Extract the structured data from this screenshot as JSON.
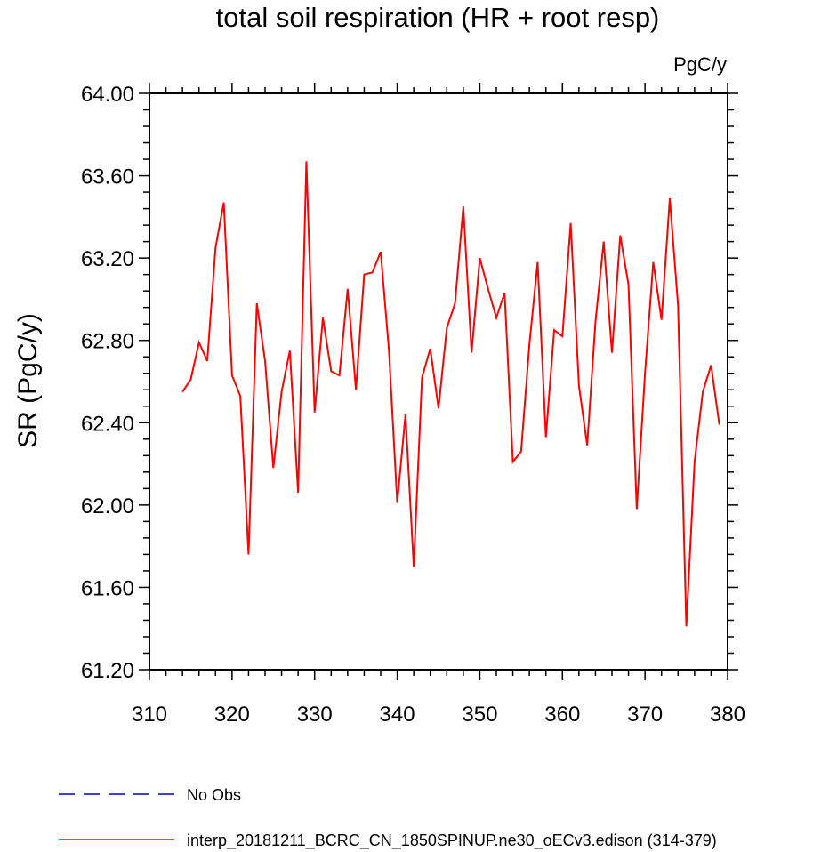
{
  "chart_data": {
    "type": "line",
    "title": "total soil respiration (HR + root resp)",
    "units_label": "PgC/y",
    "xlabel": "",
    "ylabel": "SR  (PgC/y)",
    "xlim": [
      310,
      380
    ],
    "ylim": [
      61.2,
      64.0
    ],
    "x_ticks": [
      310,
      320,
      330,
      340,
      350,
      360,
      370,
      380
    ],
    "x_tick_labels": [
      "310",
      "320",
      "330",
      "340",
      "350",
      "360",
      "370",
      "380"
    ],
    "x_minor_step": 2,
    "y_ticks": [
      61.2,
      61.6,
      62.0,
      62.4,
      62.8,
      63.2,
      63.6,
      64.0
    ],
    "y_tick_labels": [
      "61.20",
      "61.60",
      "62.00",
      "62.40",
      "62.80",
      "63.20",
      "63.60",
      "64.00"
    ],
    "y_minor_step": 0.08,
    "grid": false,
    "legend_position": "bottom",
    "series": [
      {
        "name": "No Obs",
        "color": "#0000cc",
        "style": "dashed",
        "x": [],
        "values": []
      },
      {
        "name": "interp_20181211_BCRC_CN_1850SPINUP.ne30_oECv3.edison (314-379)",
        "color": "#ff0000",
        "style": "solid",
        "x": [
          314,
          315,
          316,
          317,
          318,
          319,
          320,
          321,
          322,
          323,
          324,
          325,
          326,
          327,
          328,
          329,
          330,
          331,
          332,
          333,
          334,
          335,
          336,
          337,
          338,
          339,
          340,
          341,
          342,
          343,
          344,
          345,
          346,
          347,
          348,
          349,
          350,
          351,
          352,
          353,
          354,
          355,
          356,
          357,
          358,
          359,
          360,
          361,
          362,
          363,
          364,
          365,
          366,
          367,
          368,
          369,
          370,
          371,
          372,
          373,
          374,
          375,
          376,
          377,
          378,
          379
        ],
        "values": [
          62.55,
          62.61,
          62.79,
          62.7,
          63.25,
          63.47,
          62.63,
          62.53,
          61.76,
          62.98,
          62.7,
          62.18,
          62.55,
          62.75,
          62.06,
          63.67,
          62.45,
          62.91,
          62.65,
          62.63,
          63.05,
          62.56,
          63.12,
          63.13,
          63.23,
          62.75,
          62.01,
          62.44,
          61.7,
          62.62,
          62.76,
          62.47,
          62.86,
          62.98,
          63.45,
          62.74,
          63.2,
          63.05,
          62.91,
          63.03,
          62.21,
          62.26,
          62.78,
          63.18,
          62.33,
          62.85,
          62.82,
          63.37,
          62.58,
          62.29,
          62.89,
          63.28,
          62.74,
          63.31,
          63.07,
          61.98,
          62.64,
          63.18,
          62.9,
          63.49,
          62.97,
          61.41,
          62.21,
          62.55,
          62.68,
          62.39
        ]
      }
    ]
  }
}
